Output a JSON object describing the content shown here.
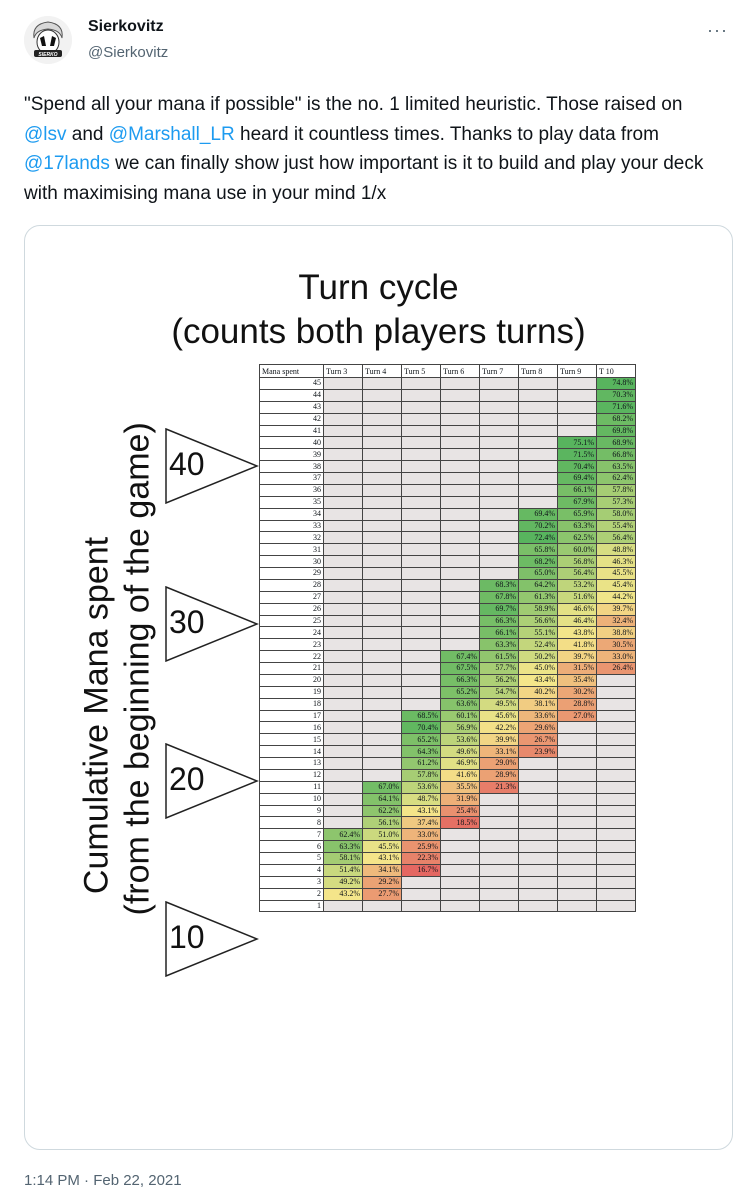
{
  "tweet": {
    "display_name": "Sierkovitz",
    "handle": "@Sierkovitz",
    "more_label": "···",
    "avatar_text": "SIERKO",
    "text_parts": [
      "\"Spend all your mana if possible\" is the no. 1 limited heuristic. Those raised on ",
      "@lsv",
      " and ",
      "@Marshall_LR",
      " heard it countless times. Thanks to play data from ",
      "@17lands",
      " we can finally show just how important is it to build and play your deck with maximising mana use in your mind 1/x"
    ],
    "timestamp": "1:14 PM · Feb 22, 2021"
  },
  "figure": {
    "title_line1": "Turn cycle",
    "title_line2": "(counts both players turns)",
    "ylabel_line1": "Cumulative Mana spent",
    "ylabel_line2": "(from the beginning of the game)",
    "markers": [
      "40",
      "30",
      "20",
      "10"
    ]
  },
  "chart_data": {
    "type": "table",
    "columns": [
      "Mana spent",
      "Turn 3",
      "Turn 4",
      "Turn 5",
      "Turn 6",
      "Turn 7",
      "Turn 8",
      "Turn 9",
      "T 10"
    ],
    "rows": [
      [
        45,
        "",
        "",
        "",
        "",
        "",
        "",
        "",
        "74.8%"
      ],
      [
        44,
        "",
        "",
        "",
        "",
        "",
        "",
        "",
        "70.3%"
      ],
      [
        43,
        "",
        "",
        "",
        "",
        "",
        "",
        "",
        "71.6%"
      ],
      [
        42,
        "",
        "",
        "",
        "",
        "",
        "",
        "",
        "68.2%"
      ],
      [
        41,
        "",
        "",
        "",
        "",
        "",
        "",
        "",
        "69.8%"
      ],
      [
        40,
        "",
        "",
        "",
        "",
        "",
        "",
        "75.1%",
        "68.9%"
      ],
      [
        39,
        "",
        "",
        "",
        "",
        "",
        "",
        "71.5%",
        "66.8%"
      ],
      [
        38,
        "",
        "",
        "",
        "",
        "",
        "",
        "70.4%",
        "63.5%"
      ],
      [
        37,
        "",
        "",
        "",
        "",
        "",
        "",
        "69.4%",
        "62.4%"
      ],
      [
        36,
        "",
        "",
        "",
        "",
        "",
        "",
        "66.1%",
        "57.8%"
      ],
      [
        35,
        "",
        "",
        "",
        "",
        "",
        "",
        "67.9%",
        "57.3%"
      ],
      [
        34,
        "",
        "",
        "",
        "",
        "",
        "69.4%",
        "65.9%",
        "58.0%"
      ],
      [
        33,
        "",
        "",
        "",
        "",
        "",
        "70.2%",
        "63.3%",
        "55.4%"
      ],
      [
        32,
        "",
        "",
        "",
        "",
        "",
        "72.4%",
        "62.5%",
        "56.4%"
      ],
      [
        31,
        "",
        "",
        "",
        "",
        "",
        "65.8%",
        "60.0%",
        "48.8%"
      ],
      [
        30,
        "",
        "",
        "",
        "",
        "",
        "68.2%",
        "56.8%",
        "46.3%"
      ],
      [
        29,
        "",
        "",
        "",
        "",
        "",
        "65.0%",
        "56.4%",
        "45.5%"
      ],
      [
        28,
        "",
        "",
        "",
        "",
        "68.3%",
        "64.2%",
        "53.2%",
        "45.4%"
      ],
      [
        27,
        "",
        "",
        "",
        "",
        "67.8%",
        "61.3%",
        "51.6%",
        "44.2%"
      ],
      [
        26,
        "",
        "",
        "",
        "",
        "69.7%",
        "58.9%",
        "46.6%",
        "39.7%"
      ],
      [
        25,
        "",
        "",
        "",
        "",
        "66.3%",
        "56.6%",
        "46.4%",
        "32.4%"
      ],
      [
        24,
        "",
        "",
        "",
        "",
        "66.1%",
        "55.1%",
        "43.8%",
        "38.8%"
      ],
      [
        23,
        "",
        "",
        "",
        "",
        "63.3%",
        "52.4%",
        "41.8%",
        "30.5%"
      ],
      [
        22,
        "",
        "",
        "",
        "67.4%",
        "61.5%",
        "50.2%",
        "39.7%",
        "33.0%"
      ],
      [
        21,
        "",
        "",
        "",
        "67.5%",
        "57.7%",
        "45.0%",
        "31.5%",
        "26.4%"
      ],
      [
        20,
        "",
        "",
        "",
        "66.3%",
        "56.2%",
        "43.4%",
        "35.4%",
        ""
      ],
      [
        19,
        "",
        "",
        "",
        "65.2%",
        "54.7%",
        "40.2%",
        "30.2%",
        ""
      ],
      [
        18,
        "",
        "",
        "",
        "63.6%",
        "49.5%",
        "38.1%",
        "28.8%",
        ""
      ],
      [
        17,
        "",
        "",
        "68.5%",
        "60.1%",
        "45.6%",
        "33.6%",
        "27.0%",
        ""
      ],
      [
        16,
        "",
        "",
        "70.4%",
        "56.9%",
        "42.2%",
        "29.6%",
        "",
        ""
      ],
      [
        15,
        "",
        "",
        "65.2%",
        "53.6%",
        "39.9%",
        "26.7%",
        "",
        ""
      ],
      [
        14,
        "",
        "",
        "64.3%",
        "49.6%",
        "33.1%",
        "23.9%",
        "",
        ""
      ],
      [
        13,
        "",
        "",
        "61.2%",
        "46.9%",
        "29.0%",
        "",
        "",
        ""
      ],
      [
        12,
        "",
        "",
        "57.8%",
        "41.6%",
        "28.9%",
        "",
        "",
        ""
      ],
      [
        11,
        "",
        "67.0%",
        "53.6%",
        "35.5%",
        "21.3%",
        "",
        "",
        ""
      ],
      [
        10,
        "",
        "64.1%",
        "48.7%",
        "31.9%",
        "",
        "",
        "",
        ""
      ],
      [
        9,
        "",
        "62.2%",
        "43.1%",
        "25.4%",
        "",
        "",
        "",
        ""
      ],
      [
        8,
        "",
        "56.1%",
        "37.4%",
        "18.5%",
        "",
        "",
        "",
        ""
      ],
      [
        7,
        "62.4%",
        "51.0%",
        "33.0%",
        "",
        "",
        "",
        "",
        ""
      ],
      [
        6,
        "63.3%",
        "45.5%",
        "25.9%",
        "",
        "",
        "",
        "",
        ""
      ],
      [
        5,
        "58.1%",
        "43.1%",
        "22.3%",
        "",
        "",
        "",
        "",
        ""
      ],
      [
        4,
        "51.4%",
        "34.1%",
        "16.7%",
        "",
        "",
        "",
        "",
        ""
      ],
      [
        3,
        "49.2%",
        "29.2%",
        "",
        "",
        "",
        "",
        "",
        ""
      ],
      [
        2,
        "43.2%",
        "27.7%",
        "",
        "",
        "",
        "",
        "",
        ""
      ],
      [
        1,
        "",
        "",
        "",
        "",
        "",
        "",
        "",
        ""
      ]
    ],
    "color_scale": {
      "low": "#e35f5f",
      "mid": "#f4e68a",
      "high": "#58b45e",
      "empty": "#e8e4e4"
    }
  }
}
